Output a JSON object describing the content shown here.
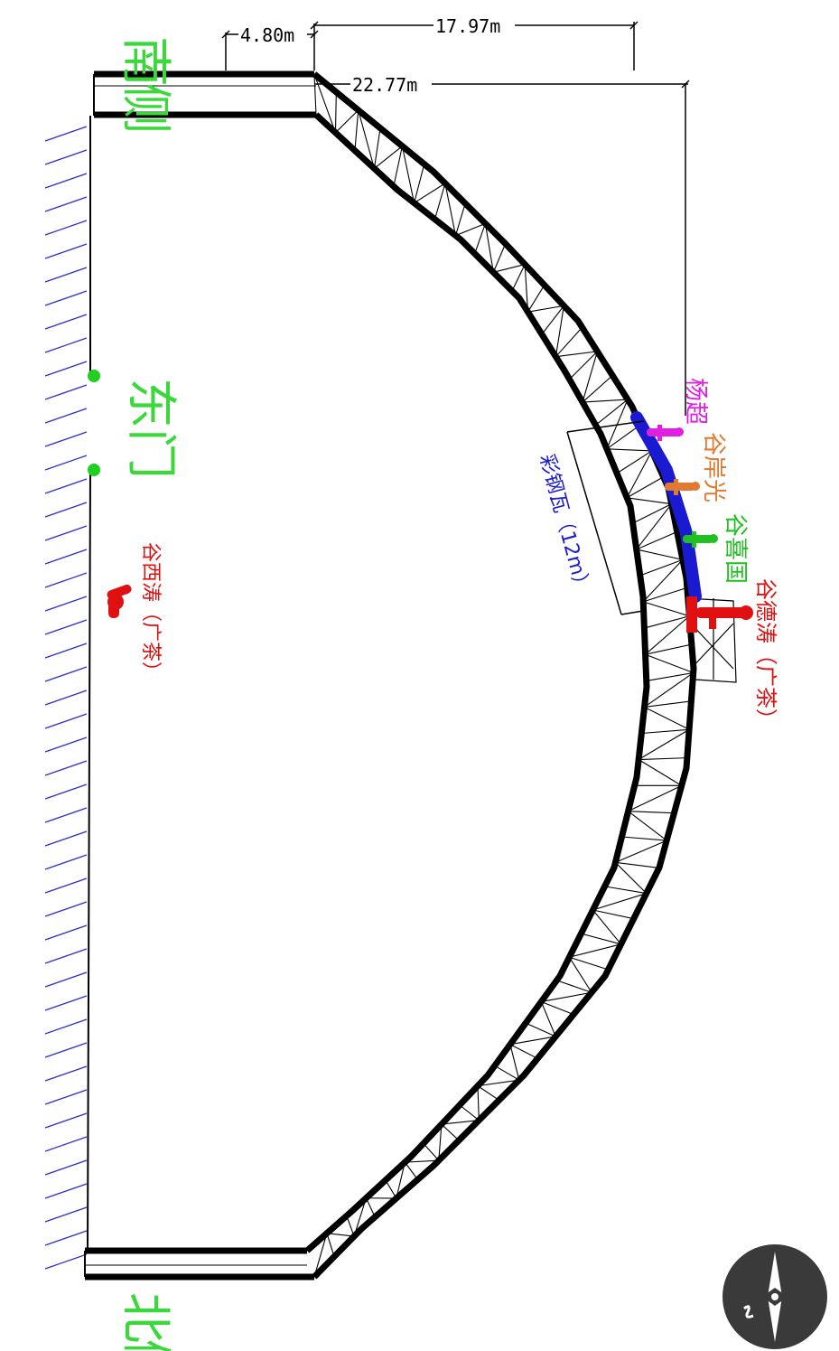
{
  "labels": {
    "south_side": "南侧",
    "north_side": "北侧",
    "east_gate": "东门",
    "steel_tile": "彩钢瓦（12m）"
  },
  "dimensions": {
    "d1": "4.80m",
    "d2": "17.97m",
    "d3": "22.77m"
  },
  "people": [
    {
      "name": "杨超",
      "color": "#e020e0"
    },
    {
      "name": "谷岸光",
      "color": "#e07a30"
    },
    {
      "name": "谷喜国",
      "color": "#20c020"
    },
    {
      "name": "谷德涛（广茶）",
      "color": "#e01010"
    },
    {
      "name": "谷西涛（广茶）",
      "color": "#e01010"
    }
  ],
  "colors": {
    "wall_hatch": "#2b2bd0",
    "label_green": "#3ad83a",
    "tile_blue": "#1a1ad0",
    "compass_bg": "#3a3a3a"
  },
  "icons": {
    "compass": "compass-icon"
  }
}
